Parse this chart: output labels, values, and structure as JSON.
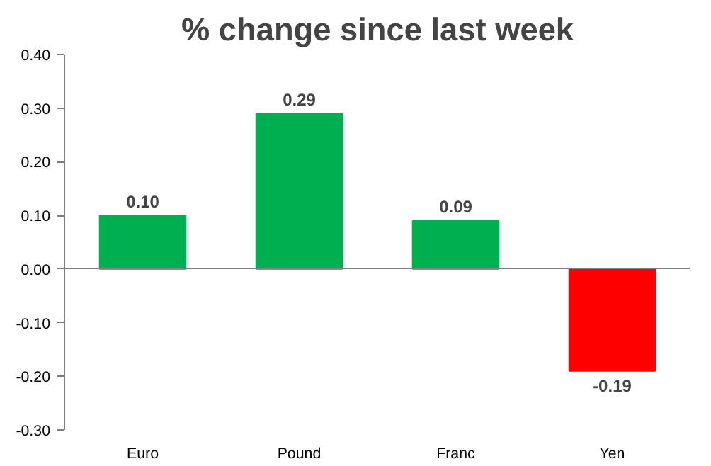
{
  "chart_data": {
    "type": "bar",
    "title": "% change since last week",
    "categories": [
      "Euro",
      "Pound",
      "Franc",
      "Yen"
    ],
    "values": [
      0.1,
      0.29,
      0.09,
      -0.19
    ],
    "colors": [
      "#00b050",
      "#00b050",
      "#00b050",
      "#ff0000"
    ],
    "value_labels": [
      "0.10",
      "0.29",
      "0.09",
      "-0.19"
    ],
    "ylim": [
      -0.3,
      0.4
    ],
    "yticks": [
      {
        "value": -0.3,
        "label": "-0.30"
      },
      {
        "value": -0.2,
        "label": "-0.20"
      },
      {
        "value": -0.1,
        "label": "-0.10"
      },
      {
        "value": 0,
        "label": "0.00"
      },
      {
        "value": 0.1,
        "label": "0.10"
      },
      {
        "value": 0.2,
        "label": "0.20"
      },
      {
        "value": 0.3,
        "label": "0.30"
      },
      {
        "value": 0.4,
        "label": "0.40"
      }
    ]
  }
}
